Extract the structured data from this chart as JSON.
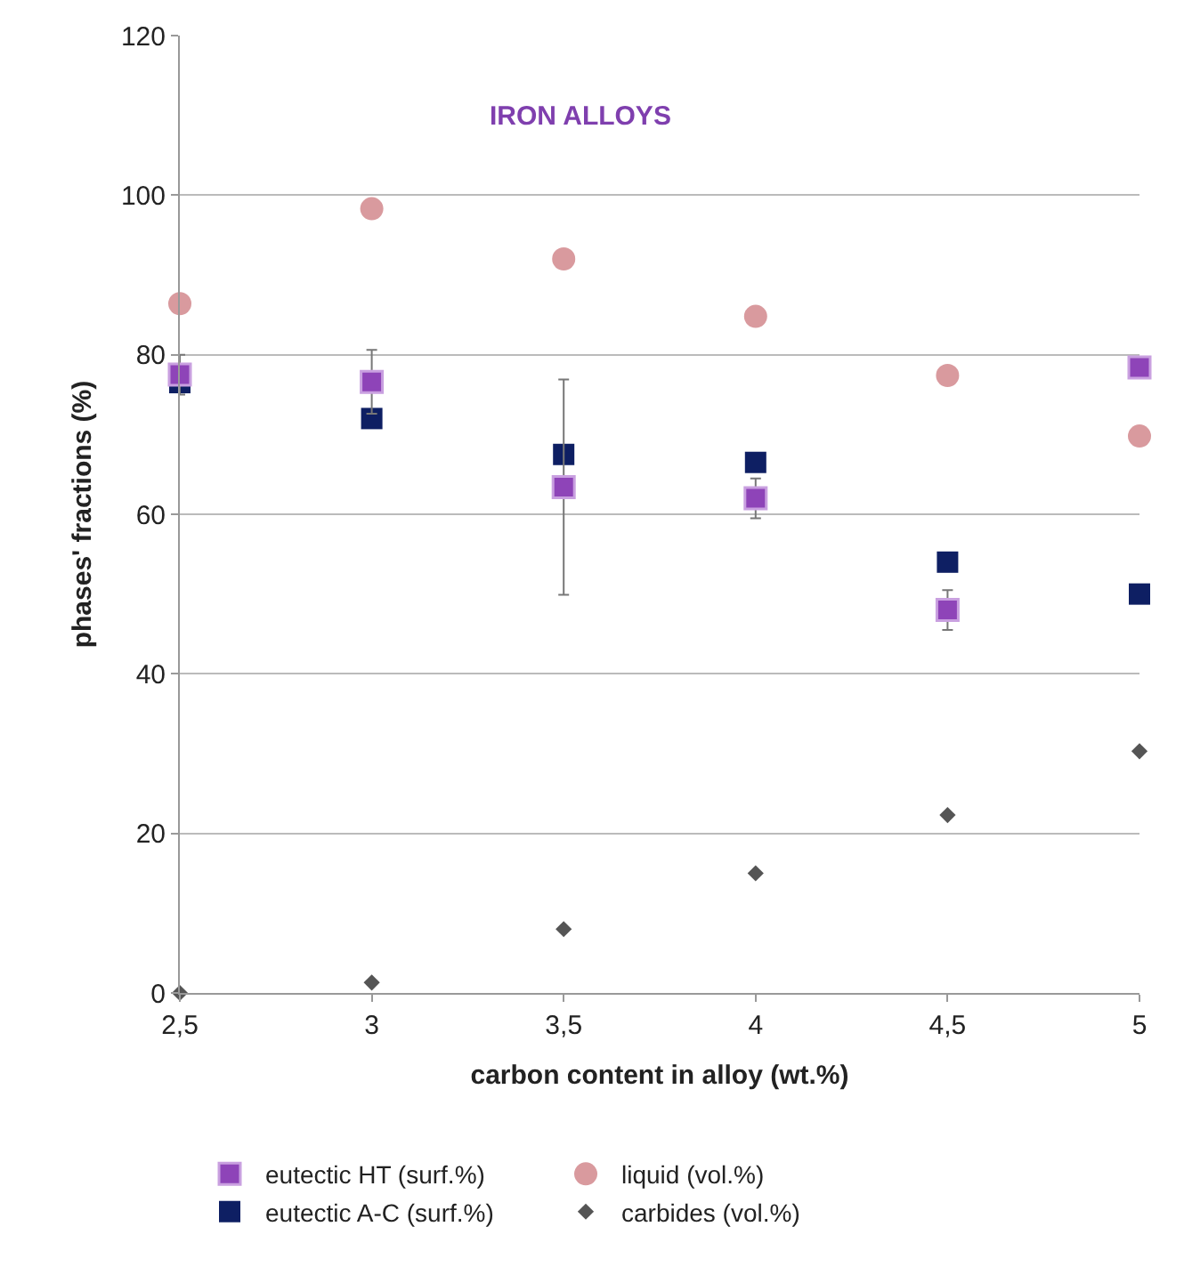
{
  "chart_data": {
    "type": "scatter",
    "xlabel": "carbon content in alloy (wt.%)",
    "ylabel": "phases' fractions (%)",
    "annotations": [
      "IRON ALLOYS"
    ],
    "x": [
      2.5,
      3,
      3.5,
      4,
      4.5,
      5
    ],
    "xlim": [
      2.5,
      5
    ],
    "xticks": [
      {
        "value": 2.5,
        "label": "2,5"
      },
      3,
      {
        "value": 3.5,
        "label": "3,5"
      },
      4,
      {
        "value": 4.5,
        "label": "4,5"
      },
      5
    ],
    "ylim": [
      0,
      120
    ],
    "yticks": [
      0,
      20,
      40,
      60,
      80,
      100,
      120
    ],
    "grid": "y",
    "legend": "bottom",
    "series": [
      {
        "name": "eutectic HT (surf.%)",
        "color": "#8e44b8",
        "marker": "square",
        "values": [
          77.5,
          76.6,
          63.4,
          62,
          48,
          78.4
        ],
        "errors": [
          2.5,
          4,
          13.5,
          2.5,
          2.5,
          null
        ]
      },
      {
        "name": "liquid (vol.%)",
        "color": "#d99a9e",
        "marker": "circle",
        "values": [
          86.4,
          98.3,
          92,
          84.8,
          77.4,
          69.8
        ]
      },
      {
        "name": "eutectic A-C (surf.%)",
        "color": "#0e1f63",
        "marker": "square",
        "values": [
          76.5,
          72,
          67.5,
          66.5,
          54,
          50
        ]
      },
      {
        "name": "carbides (vol.%)",
        "color": "#555555",
        "marker": "diamond",
        "values": [
          0,
          1.3,
          8,
          15,
          22.3,
          30.3
        ]
      }
    ]
  }
}
